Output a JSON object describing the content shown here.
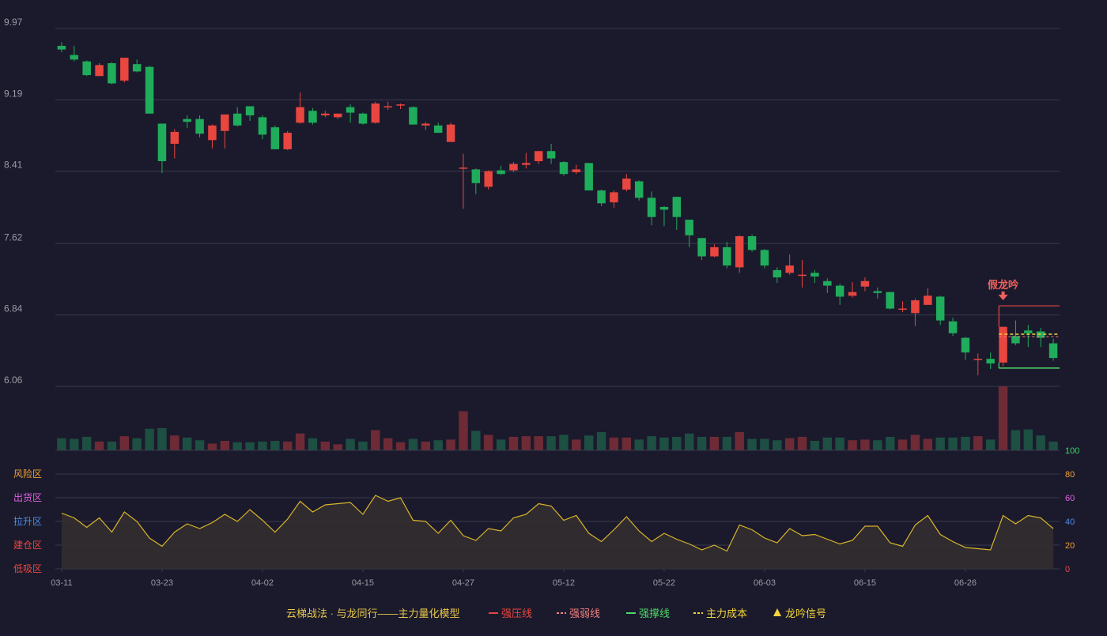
{
  "colors": {
    "background": "#1b1a2c",
    "up": "#e8463f",
    "down": "#1fad5c",
    "up_volume": "#6e2b35",
    "down_volume": "#1d4f43",
    "grid": "#3a3a4c",
    "axis_text": "#9a9aa6",
    "indicator_line": "#d9b52a",
    "indicator_fill": "#342f2f",
    "resistance": "#e8463f",
    "support": "#4cd964",
    "cost": "#f3d53a",
    "signal": "#f0605c"
  },
  "chart_data": {
    "type": "candlestick",
    "price_axis": {
      "ticks": [
        "9.97",
        "9.19",
        "8.41",
        "7.62",
        "6.84",
        "6.06"
      ],
      "range": [
        6.06,
        9.97
      ]
    },
    "x_ticks": [
      {
        "label": "03-11",
        "index": 0
      },
      {
        "label": "03-23",
        "index": 8
      },
      {
        "label": "04-02",
        "index": 16
      },
      {
        "label": "04-15",
        "index": 24
      },
      {
        "label": "04-27",
        "index": 32
      },
      {
        "label": "05-12",
        "index": 40
      },
      {
        "label": "05-22",
        "index": 48
      },
      {
        "label": "06-03",
        "index": 56
      },
      {
        "label": "06-15",
        "index": 64
      },
      {
        "label": "06-26",
        "index": 72
      }
    ],
    "candles": [
      [
        9.78,
        9.74,
        9.82,
        9.71
      ],
      [
        9.68,
        9.63,
        9.78,
        9.61
      ],
      [
        9.61,
        9.46,
        9.62,
        9.45
      ],
      [
        9.45,
        9.57,
        9.59,
        9.45
      ],
      [
        9.59,
        9.37,
        9.6,
        9.36
      ],
      [
        9.4,
        9.65,
        9.65,
        9.38
      ],
      [
        9.58,
        9.5,
        9.63,
        9.49
      ],
      [
        9.55,
        9.04,
        9.56,
        9.04
      ],
      [
        8.93,
        8.52,
        8.93,
        8.39
      ],
      [
        8.71,
        8.84,
        8.87,
        8.55
      ],
      [
        8.98,
        8.95,
        9.02,
        8.88
      ],
      [
        8.98,
        8.82,
        9.02,
        8.78
      ],
      [
        8.75,
        8.91,
        8.92,
        8.66
      ],
      [
        8.85,
        9.03,
        9.03,
        8.66
      ],
      [
        9.04,
        8.91,
        9.11,
        8.9
      ],
      [
        9.12,
        9.02,
        9.12,
        8.96
      ],
      [
        9.0,
        8.81,
        9.02,
        8.76
      ],
      [
        8.89,
        8.65,
        8.91,
        8.65
      ],
      [
        8.65,
        8.83,
        8.85,
        8.64
      ],
      [
        8.94,
        9.11,
        9.27,
        8.93
      ],
      [
        9.07,
        8.94,
        9.1,
        8.92
      ],
      [
        9.02,
        9.04,
        9.07,
        9.0
      ],
      [
        9.0,
        9.04,
        9.04,
        8.98
      ],
      [
        9.11,
        9.05,
        9.14,
        8.94
      ],
      [
        9.04,
        8.93,
        9.05,
        8.92
      ],
      [
        8.94,
        9.15,
        9.17,
        8.93
      ],
      [
        9.11,
        9.12,
        9.17,
        9.08
      ],
      [
        9.13,
        9.14,
        9.15,
        9.09
      ],
      [
        9.11,
        8.92,
        9.12,
        8.92
      ],
      [
        8.91,
        8.93,
        8.95,
        8.86
      ],
      [
        8.91,
        8.83,
        8.94,
        8.83
      ],
      [
        8.73,
        8.92,
        8.94,
        8.73
      ],
      [
        8.44,
        8.45,
        8.6,
        8.0
      ],
      [
        8.43,
        8.28,
        8.44,
        8.16
      ],
      [
        8.24,
        8.41,
        8.42,
        8.21
      ],
      [
        8.42,
        8.38,
        8.47,
        8.37
      ],
      [
        8.42,
        8.49,
        8.51,
        8.4
      ],
      [
        8.48,
        8.5,
        8.61,
        8.44
      ],
      [
        8.52,
        8.63,
        8.63,
        8.49
      ],
      [
        8.63,
        8.55,
        8.71,
        8.49
      ],
      [
        8.51,
        8.38,
        8.52,
        8.36
      ],
      [
        8.4,
        8.43,
        8.48,
        8.38
      ],
      [
        8.5,
        8.2,
        8.5,
        8.2
      ],
      [
        8.2,
        8.06,
        8.21,
        8.03
      ],
      [
        8.07,
        8.18,
        8.2,
        8.01
      ],
      [
        8.21,
        8.33,
        8.38,
        8.19
      ],
      [
        8.3,
        8.12,
        8.31,
        8.09
      ],
      [
        8.12,
        7.91,
        8.19,
        7.82
      ],
      [
        8.02,
        7.99,
        8.03,
        7.81
      ],
      [
        8.13,
        7.91,
        8.13,
        7.77
      ],
      [
        7.88,
        7.71,
        7.88,
        7.58
      ],
      [
        7.68,
        7.48,
        7.68,
        7.44
      ],
      [
        7.48,
        7.58,
        7.61,
        7.47
      ],
      [
        7.58,
        7.38,
        7.64,
        7.35
      ],
      [
        7.36,
        7.7,
        7.71,
        7.3
      ],
      [
        7.7,
        7.55,
        7.72,
        7.53
      ],
      [
        7.55,
        7.38,
        7.56,
        7.35
      ],
      [
        7.33,
        7.25,
        7.36,
        7.19
      ],
      [
        7.3,
        7.38,
        7.5,
        7.28
      ],
      [
        7.28,
        7.28,
        7.44,
        7.14
      ],
      [
        7.3,
        7.26,
        7.33,
        7.19
      ],
      [
        7.21,
        7.16,
        7.24,
        7.08
      ],
      [
        7.16,
        7.04,
        7.18,
        6.95
      ],
      [
        7.05,
        7.09,
        7.2,
        7.03
      ],
      [
        7.15,
        7.21,
        7.25,
        7.1
      ],
      [
        7.1,
        7.08,
        7.14,
        7.02
      ],
      [
        7.09,
        6.91,
        7.09,
        6.9
      ],
      [
        6.91,
        6.91,
        6.99,
        6.87
      ],
      [
        6.86,
        7.0,
        7.02,
        6.72
      ],
      [
        6.95,
        7.05,
        7.13,
        6.98
      ],
      [
        7.04,
        6.78,
        7.05,
        6.73
      ],
      [
        6.77,
        6.64,
        6.81,
        6.61
      ],
      [
        6.59,
        6.43,
        6.6,
        6.35
      ],
      [
        6.36,
        6.36,
        6.42,
        6.18
      ],
      [
        6.36,
        6.31,
        6.43,
        6.25
      ],
      [
        6.32,
        6.71,
        6.71,
        6.28
      ],
      [
        6.61,
        6.53,
        6.78,
        6.51
      ],
      [
        6.67,
        6.64,
        6.73,
        6.49
      ],
      [
        6.66,
        6.59,
        6.7,
        6.49
      ],
      [
        6.53,
        6.37,
        6.58,
        6.34
      ]
    ],
    "volume": [
      18,
      17,
      20,
      13,
      13,
      21,
      18,
      32,
      33,
      22,
      19,
      15,
      10,
      14,
      12,
      12,
      13,
      14,
      13,
      25,
      18,
      13,
      9,
      17,
      13,
      30,
      18,
      12,
      17,
      13,
      15,
      16,
      58,
      29,
      23,
      16,
      20,
      21,
      21,
      21,
      23,
      16,
      22,
      27,
      19,
      19,
      16,
      21,
      19,
      20,
      25,
      20,
      20,
      20,
      27,
      17,
      17,
      15,
      18,
      20,
      14,
      19,
      19,
      15,
      16,
      15,
      20,
      16,
      23,
      17,
      19,
      19,
      20,
      21,
      16,
      95,
      30,
      31,
      22,
      13
    ],
    "indicator": {
      "values": [
        47,
        43,
        35,
        43,
        31,
        48,
        40,
        26,
        19,
        31,
        38,
        34,
        39,
        46,
        40,
        50,
        41,
        31,
        42,
        57,
        48,
        54,
        55,
        56,
        46,
        62,
        57,
        60,
        41,
        40,
        30,
        41,
        28,
        24,
        34,
        32,
        43,
        46,
        55,
        53,
        41,
        45,
        30,
        23,
        33,
        44,
        32,
        23,
        30,
        25,
        21,
        16,
        20,
        15,
        37,
        33,
        26,
        22,
        34,
        28,
        29,
        25,
        21,
        24,
        36,
        36,
        22,
        19,
        37,
        45,
        29,
        23,
        18,
        17,
        16,
        45,
        38,
        45,
        43,
        34
      ],
      "range": [
        0,
        100
      ],
      "right_ticks": [
        "100",
        "80",
        "60",
        "40",
        "20",
        "0"
      ],
      "zones": [
        "风险区",
        "出货区",
        "拉升区",
        "建仓区",
        "低吸区"
      ],
      "zone_colors": [
        "#f0a030",
        "#e060e0",
        "#4a8fe8",
        "#e8463f",
        "#e8463f"
      ],
      "right_tick_colors": [
        "#3cd76a",
        "#f0a030",
        "#e060e0",
        "#4a8fe8",
        "#f0a030",
        "#e8463f"
      ]
    },
    "levels": {
      "start_index": 75,
      "resistance": 6.94,
      "weak": 6.62,
      "cost": 6.63,
      "support": 6.26
    },
    "annotation": {
      "label": "假龙吟",
      "index": 75
    },
    "legend": [
      {
        "label": "云梯战法 · 与龙同行——主力量化模型",
        "style": "none",
        "color": "#f3d53a"
      },
      {
        "label": "强压线",
        "style": "solid",
        "color": "#e8463f"
      },
      {
        "label": "强弱线",
        "style": "dashed",
        "color": "#f08080"
      },
      {
        "label": "强撑线",
        "style": "solid",
        "color": "#4cd964"
      },
      {
        "label": "主力成本",
        "style": "dashed",
        "color": "#f3d53a"
      },
      {
        "label": "龙吟信号",
        "style": "triangle",
        "color": "#f3d53a"
      }
    ]
  }
}
